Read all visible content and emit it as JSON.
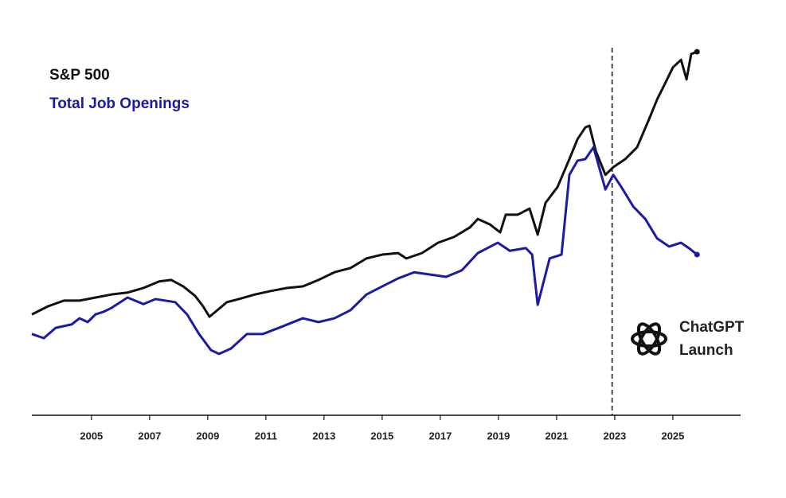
{
  "chart_data": {
    "type": "line",
    "xlim": [
      2002.95,
      2027.33
    ],
    "xticks": [
      2005,
      2007,
      2009,
      2011,
      2013,
      2015,
      2017,
      2019,
      2021,
      2023,
      2025
    ],
    "ylim": [
      0,
      100
    ],
    "legend": "top-left",
    "series": [
      {
        "name": "S&P 500",
        "color": "#111111",
        "x": [
          2002.95,
          2003.5,
          2004.05,
          2004.59,
          2005.14,
          2005.69,
          2006.24,
          2006.79,
          2007.33,
          2007.74,
          2008.16,
          2008.57,
          2008.84,
          2009.06,
          2009.25,
          2009.66,
          2010.07,
          2010.62,
          2011.17,
          2011.72,
          2012.27,
          2012.81,
          2013.36,
          2013.91,
          2014.46,
          2015.0,
          2015.55,
          2015.83,
          2016.37,
          2016.92,
          2017.47,
          2018.02,
          2018.29,
          2018.7,
          2019.06,
          2019.25,
          2019.66,
          2020.07,
          2020.35,
          2020.62,
          2021.03,
          2021.44,
          2021.72,
          2021.99,
          2022.13,
          2022.35,
          2022.68,
          2022.95,
          2023.36,
          2023.77,
          2024.18,
          2024.46,
          2024.73,
          2025.0,
          2025.28,
          2025.47,
          2025.63,
          2025.83
        ],
        "values": [
          26.3,
          28.4,
          29.9,
          29.9,
          30.7,
          31.5,
          32.0,
          33.2,
          34.9,
          35.3,
          33.6,
          31.1,
          28.4,
          25.7,
          26.9,
          29.5,
          30.3,
          31.5,
          32.4,
          33.2,
          33.6,
          35.3,
          37.3,
          38.4,
          40.9,
          41.9,
          42.3,
          40.9,
          42.3,
          45.0,
          46.5,
          49.0,
          51.2,
          49.8,
          47.7,
          52.3,
          52.3,
          53.9,
          47.1,
          55.4,
          59.5,
          66.8,
          72.0,
          75.1,
          75.5,
          68.9,
          62.7,
          64.7,
          66.8,
          69.9,
          77.2,
          82.4,
          86.5,
          90.7,
          92.7,
          87.6,
          94.2,
          94.8
        ]
      },
      {
        "name": "Total Job Openings",
        "color": "#1a1aa6",
        "x": [
          2002.95,
          2003.36,
          2003.77,
          2004.32,
          2004.59,
          2004.87,
          2005.14,
          2005.42,
          2005.69,
          2006.24,
          2006.79,
          2007.2,
          2007.88,
          2008.29,
          2008.7,
          2009.11,
          2009.39,
          2009.8,
          2010.35,
          2010.9,
          2011.58,
          2012.27,
          2012.81,
          2013.36,
          2013.91,
          2014.46,
          2015.0,
          2015.55,
          2016.1,
          2016.65,
          2017.2,
          2017.74,
          2018.29,
          2018.98,
          2019.39,
          2019.94,
          2020.16,
          2020.35,
          2020.76,
          2021.17,
          2021.44,
          2021.72,
          2021.99,
          2022.27,
          2022.68,
          2022.95,
          2023.23,
          2023.64,
          2024.05,
          2024.46,
          2024.87,
          2025.28,
          2025.55,
          2025.83
        ],
        "values": [
          21.2,
          20.1,
          22.8,
          23.7,
          25.3,
          24.3,
          26.3,
          27.0,
          28.0,
          30.7,
          29.0,
          30.3,
          29.5,
          26.3,
          21.2,
          17.0,
          16.0,
          17.4,
          21.2,
          21.2,
          23.2,
          25.3,
          24.3,
          25.3,
          27.4,
          31.5,
          33.6,
          35.7,
          37.3,
          36.7,
          36.1,
          37.8,
          42.3,
          45.0,
          42.9,
          43.6,
          41.9,
          28.8,
          40.9,
          41.9,
          62.7,
          66.4,
          66.8,
          69.9,
          58.9,
          62.7,
          59.5,
          54.4,
          51.2,
          46.1,
          44.0,
          45.0,
          43.6,
          41.9
        ]
      }
    ],
    "annotation": {
      "x": 2022.91,
      "lines": [
        "ChatGPT",
        "Launch"
      ]
    }
  }
}
